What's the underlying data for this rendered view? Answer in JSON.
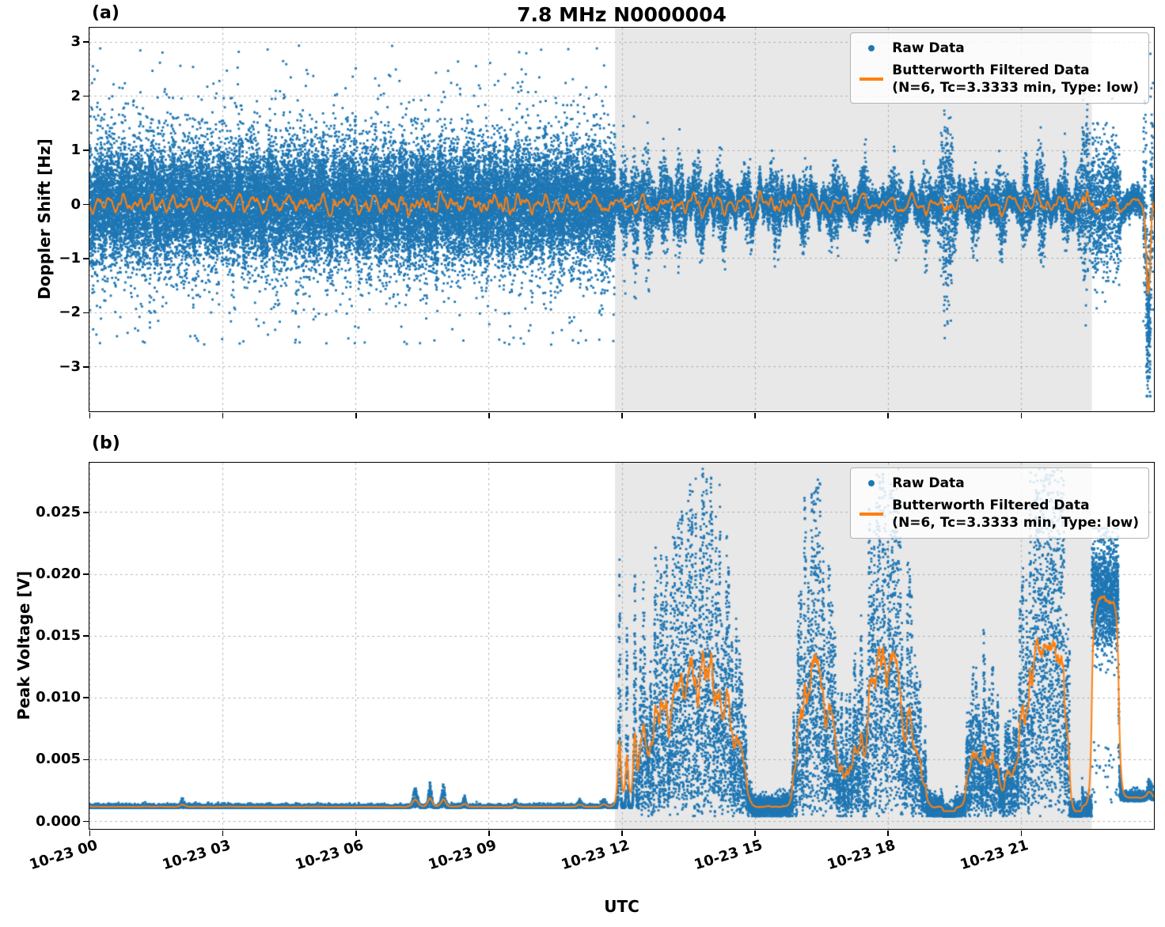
{
  "figure": {
    "title": "7.8 MHz N0000004",
    "xlabel": "UTC"
  },
  "colors": {
    "raw": "#1f77b4",
    "filtered": "#ff7f0e",
    "shade": "#e8e8e8",
    "grid": "#9a9a9a",
    "axis": "#000000",
    "legend_border": "#b3b3b3"
  },
  "x_axis": {
    "label": "UTC",
    "range_hours": [
      0,
      24
    ],
    "tick_hours": [
      0,
      3,
      6,
      9,
      12,
      15,
      18,
      21
    ],
    "tick_labels": [
      "10-23 00",
      "10-23 03",
      "10-23 06",
      "10-23 09",
      "10-23 12",
      "10-23 15",
      "10-23 18",
      "10-23 21"
    ],
    "shaded_region_hours": [
      11.85,
      22.6
    ]
  },
  "chart_data": [
    {
      "type": "scatter",
      "panel_label": "(a)",
      "title": "7.8 MHz N0000004",
      "ylabel": "Doppler Shift [Hz]",
      "ylim": [
        -3.83,
        3.26
      ],
      "ytick_values": [
        -3,
        -2,
        -1,
        0,
        1,
        2,
        3
      ],
      "ytick_labels": [
        "−3",
        "−2",
        "−1",
        "0",
        "1",
        "2",
        "3"
      ],
      "grid": true,
      "legend_position": "upper right",
      "series": [
        {
          "name": "Raw Data",
          "type": "scatter",
          "color": "#1f77b4"
        },
        {
          "name": "Butterworth Filtered Data (N=6, Tc=3.3333 min, Type: low)",
          "type": "line",
          "color": "#ff7f0e"
        }
      ],
      "legend": {
        "items": [
          {
            "marker": "dot",
            "label": "Raw Data"
          },
          {
            "marker": "line",
            "label": "Butterworth Filtered Data",
            "label2": "(N=6, Tc=3.3333 min, Type: low)"
          }
        ]
      },
      "series_model": {
        "seed": 1337,
        "slow_mean_amp": 0.14,
        "phase_noisy": {
          "t": [
            0,
            11.85
          ],
          "points": 30000,
          "sigma_core": 0.48,
          "sigma_tail": 0.95,
          "tail_frac": 0.15,
          "clip": [
            -2.6,
            2.95
          ]
        },
        "phase_quiet": {
          "t": [
            11.85,
            24
          ],
          "points": 16000,
          "sigma_base": 0.12
        },
        "bursts": [
          {
            "c": 12.05,
            "w": 0.05,
            "s": 0.45
          },
          {
            "c": 12.3,
            "w": 0.05,
            "s": 0.55
          },
          {
            "c": 12.6,
            "w": 0.07,
            "s": 0.45
          },
          {
            "c": 12.95,
            "w": 0.06,
            "s": 0.4
          },
          {
            "c": 13.3,
            "w": 0.06,
            "s": 0.35
          },
          {
            "c": 13.75,
            "w": 0.08,
            "s": 0.3
          },
          {
            "c": 14.25,
            "w": 0.09,
            "s": 0.28
          },
          {
            "c": 14.85,
            "w": 0.07,
            "s": 0.22
          },
          {
            "c": 15.45,
            "w": 0.09,
            "s": 0.26
          },
          {
            "c": 16.1,
            "w": 0.07,
            "s": 0.22
          },
          {
            "c": 16.8,
            "w": 0.09,
            "s": 0.26
          },
          {
            "c": 17.5,
            "w": 0.07,
            "s": 0.22
          },
          {
            "c": 18.2,
            "w": 0.09,
            "s": 0.23
          },
          {
            "c": 18.85,
            "w": 0.05,
            "s": 0.3
          },
          {
            "c": 19.33,
            "w": 0.1,
            "s": 0.85
          },
          {
            "c": 19.95,
            "w": 0.07,
            "s": 0.25
          },
          {
            "c": 20.55,
            "w": 0.07,
            "s": 0.3
          },
          {
            "c": 21.1,
            "w": 0.05,
            "s": 0.35
          },
          {
            "c": 21.45,
            "w": 0.06,
            "s": 0.45
          },
          {
            "c": 22.0,
            "w": 0.05,
            "s": 0.3
          },
          {
            "c": 22.45,
            "w": 0.09,
            "s": 0.7
          }
        ],
        "flat_bursts": [
          {
            "t": [
              22.6,
              23.25
            ],
            "sigma": 0.42
          }
        ],
        "neg_spike": {
          "t": [
            23.83,
            23.92
          ],
          "mean": -2.0,
          "sigma": 0.75,
          "clip_min": -3.55
        },
        "end_burst": {
          "t": [
            23.76,
            23.98
          ],
          "sigma": 0.85
        },
        "filter_tau_hours": 0.03,
        "line_min": -99
      }
    },
    {
      "type": "scatter",
      "panel_label": "(b)",
      "ylabel": "Peak Voltage [V]",
      "ylim": [
        -0.00064,
        0.029
      ],
      "ytick_values": [
        0,
        0.005,
        0.01,
        0.015,
        0.02,
        0.025
      ],
      "ytick_labels": [
        "0.000",
        "0.005",
        "0.010",
        "0.015",
        "0.020",
        "0.025"
      ],
      "grid": true,
      "legend_position": "upper right",
      "series": [
        {
          "name": "Raw Data",
          "type": "scatter",
          "color": "#1f77b4"
        },
        {
          "name": "Butterworth Filtered Data (N=6, Tc=3.3333 min, Type: low)",
          "type": "line",
          "color": "#ff7f0e"
        }
      ],
      "legend": {
        "items": [
          {
            "marker": "dot",
            "label": "Raw Data"
          },
          {
            "marker": "line",
            "label": "Butterworth Filtered Data",
            "label2": "(N=6, Tc=3.3333 min, Type: low)"
          }
        ]
      },
      "series_model": {
        "seed": 20241,
        "baseline": 0.00105,
        "baseline_noise": 0.00013,
        "phase_calm": {
          "t": [
            0,
            11.88
          ],
          "points": 8500
        },
        "calm_bumps": [
          {
            "c": 2.1,
            "w": 0.03,
            "a": 0.0008
          },
          {
            "c": 7.35,
            "w": 0.05,
            "a": 0.0016
          },
          {
            "c": 7.68,
            "w": 0.035,
            "a": 0.0021
          },
          {
            "c": 7.98,
            "w": 0.04,
            "a": 0.0018
          },
          {
            "c": 8.45,
            "w": 0.03,
            "a": 0.001
          },
          {
            "c": 9.6,
            "w": 0.025,
            "a": 0.0006
          },
          {
            "c": 11.05,
            "w": 0.04,
            "a": 0.0006
          },
          {
            "c": 11.6,
            "w": 0.04,
            "a": 0.0007
          }
        ],
        "onset_spikes": [
          {
            "c": 11.95,
            "w": 0.018,
            "a": 0.0205
          },
          {
            "c": 12.12,
            "w": 0.015,
            "a": 0.0155
          },
          {
            "c": 12.3,
            "w": 0.02,
            "a": 0.0215
          }
        ],
        "onset_end": 12.38,
        "phase_active": {
          "t": [
            11.88,
            22.6
          ],
          "points": 14000,
          "env_base": 0.0125,
          "env_var": 0.0085,
          "env_min": 0.0015,
          "env_max": 0.0282,
          "floor": 0.0007
        },
        "dips": [
          {
            "t": [
              19.25,
              19.52
            ]
          },
          {
            "t": [
              22.1,
              22.38
            ]
          }
        ],
        "dip_factor": 0.07,
        "phase_block": {
          "t": [
            22.6,
            23.2
          ],
          "points": 1300,
          "mean": 0.0183,
          "sigma": 0.0022,
          "clip": [
            0.0115,
            0.0237
          ]
        },
        "phase_tail": {
          "t": [
            23.2,
            24
          ],
          "points": 1000,
          "base": 0.0016,
          "noise": 0.00035
        },
        "tail_end_bump": {
          "c": 23.9,
          "w": 0.05,
          "a": 0.0013
        },
        "filter_tau_hours": 0.035,
        "line_min": 0.0008
      }
    }
  ]
}
